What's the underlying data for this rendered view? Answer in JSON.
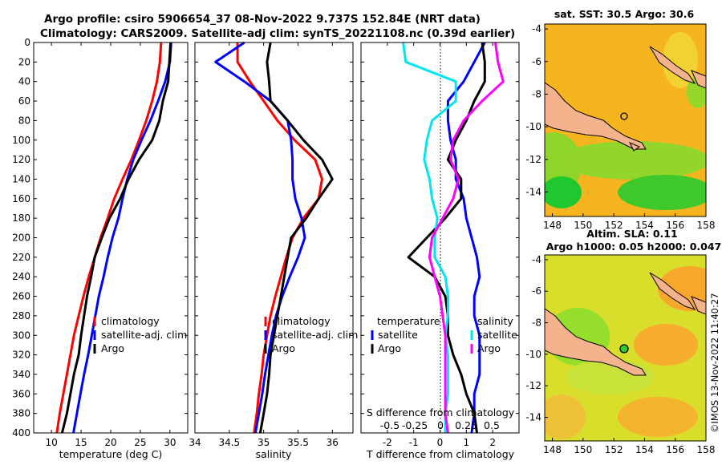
{
  "title": {
    "line1": "Argo profile: csiro 5906654_37 08-Nov-2022 9.737S 152.84E (NRT data)",
    "line2": "Climatology: CARS2009. Satellite-adj clim: synTS_20221108.nc (0.39d earlier)"
  },
  "watermark": "©IMOS 13-Nov-2022 11:40:27",
  "colors": {
    "climatology": "#ff0000",
    "satellite": "#0000ff",
    "argo": "#000000",
    "salinity": "#ff00ff",
    "sat_salinity": "#00e5ee"
  },
  "chart_data": [
    {
      "type": "line",
      "title": "",
      "xlabel": "temperature (deg C)",
      "ylabel": "depth",
      "xlim": [
        7,
        33
      ],
      "ylim": [
        400,
        0
      ],
      "xticks": [
        10,
        15,
        20,
        25,
        30
      ],
      "yticks": [
        0,
        20,
        40,
        60,
        80,
        100,
        120,
        140,
        160,
        180,
        200,
        220,
        240,
        260,
        280,
        300,
        320,
        340,
        360,
        380,
        400
      ],
      "legend": [
        "climatology",
        "satellite-adj. clim",
        "Argo"
      ],
      "series": [
        {
          "name": "climatology",
          "color": "#ff0000",
          "x": [
            28.5,
            28.3,
            27.8,
            27.0,
            26.0,
            24.8,
            23.5,
            22.0,
            20.6,
            19.5,
            18.3,
            17.3,
            16.3,
            15.4,
            14.6,
            13.8,
            13.2,
            12.6,
            12.0,
            11.4,
            10.9
          ],
          "y": [
            0,
            20,
            40,
            60,
            80,
            100,
            120,
            140,
            160,
            180,
            200,
            220,
            240,
            260,
            280,
            300,
            320,
            340,
            360,
            380,
            400
          ]
        },
        {
          "name": "satellite-adj. clim",
          "color": "#0000ff",
          "x": [
            30.2,
            30.0,
            29.2,
            28.0,
            26.7,
            25.2,
            23.8,
            22.8,
            22.0,
            21.3,
            20.3,
            19.5,
            18.8,
            18.0,
            17.4,
            16.8,
            16.2,
            15.5,
            14.9,
            14.3,
            13.7
          ],
          "y": [
            0,
            20,
            40,
            60,
            80,
            100,
            120,
            140,
            160,
            180,
            200,
            220,
            240,
            260,
            280,
            300,
            320,
            340,
            360,
            380,
            400
          ]
        },
        {
          "name": "Argo",
          "color": "#000000",
          "x": [
            30.1,
            29.9,
            29.7,
            28.8,
            28.2,
            27.0,
            24.8,
            23.0,
            21.6,
            19.8,
            18.5,
            17.3,
            16.7,
            16.0,
            15.5,
            15.0,
            14.6,
            13.8,
            13.2,
            12.6,
            11.8
          ],
          "y": [
            0,
            20,
            40,
            60,
            80,
            100,
            120,
            140,
            160,
            180,
            200,
            220,
            240,
            260,
            280,
            300,
            320,
            340,
            360,
            380,
            400
          ]
        }
      ]
    },
    {
      "type": "line",
      "title": "",
      "xlabel": "salinity",
      "ylabel": "depth",
      "xlim": [
        34,
        36.3
      ],
      "ylim": [
        400,
        0
      ],
      "xticks": [
        34,
        34.5,
        35,
        35.5,
        36
      ],
      "legend": [
        "climatology",
        "satellite-adj. clim",
        "Argo"
      ],
      "series": [
        {
          "name": "climatology",
          "color": "#ff0000",
          "x": [
            34.62,
            34.62,
            34.8,
            35.0,
            35.2,
            35.45,
            35.75,
            35.85,
            35.8,
            35.58,
            35.42,
            35.33,
            35.25,
            35.17,
            35.1,
            35.05,
            35.0,
            34.97,
            34.93,
            34.9,
            34.86
          ],
          "y": [
            0,
            20,
            40,
            60,
            80,
            100,
            120,
            140,
            160,
            180,
            200,
            220,
            240,
            260,
            280,
            300,
            320,
            340,
            360,
            380,
            400
          ]
        },
        {
          "name": "satellite-adj. clim",
          "color": "#0000ff",
          "x": [
            34.72,
            34.3,
            34.72,
            35.1,
            35.35,
            35.4,
            35.42,
            35.42,
            35.46,
            35.55,
            35.6,
            35.5,
            35.38,
            35.27,
            35.18,
            35.12,
            35.07,
            35.02,
            34.98,
            34.93,
            34.88
          ],
          "y": [
            0,
            20,
            40,
            60,
            80,
            100,
            120,
            140,
            160,
            180,
            200,
            220,
            240,
            260,
            280,
            300,
            320,
            340,
            360,
            380,
            400
          ]
        },
        {
          "name": "Argo",
          "color": "#000000",
          "x": [
            35.1,
            35.05,
            35.08,
            35.1,
            35.35,
            35.58,
            35.85,
            36.0,
            35.8,
            35.62,
            35.4,
            35.35,
            35.3,
            35.25,
            35.2,
            35.15,
            35.1,
            35.08,
            35.05,
            35.0,
            34.95
          ],
          "y": [
            0,
            20,
            40,
            60,
            80,
            100,
            120,
            140,
            160,
            180,
            200,
            220,
            240,
            260,
            280,
            300,
            320,
            340,
            360,
            380,
            400
          ]
        }
      ]
    },
    {
      "type": "line",
      "title": "",
      "xlabel": "T difference from climatology",
      "ylabel": "depth",
      "xlim": [
        -3,
        3
      ],
      "ylim": [
        400,
        0
      ],
      "xticks": [
        -2,
        -1,
        0,
        1,
        2
      ],
      "top_axis_label": "S difference from climatology",
      "top_xticks": [
        "-0.5",
        "-0.25",
        "0",
        "0.25",
        "0.5"
      ],
      "legend_left_title": "temperature",
      "legend_right_title": "salinity",
      "legend": [
        "satellite",
        "Argo",
        "satellite",
        "Argo"
      ],
      "series": [
        {
          "name": "satellite",
          "group": "temperature",
          "color": "#0000ff",
          "x": [
            1.7,
            1.3,
            0.9,
            0.3,
            0.3,
            0.4,
            0.6,
            0.6,
            0.9,
            1.0,
            1.2,
            1.4,
            1.5,
            1.3,
            1.3,
            1.5,
            1.5,
            1.5,
            1.3,
            1.3,
            1.2
          ],
          "y": [
            0,
            20,
            40,
            60,
            80,
            100,
            120,
            140,
            160,
            180,
            200,
            220,
            240,
            260,
            280,
            300,
            320,
            340,
            360,
            380,
            400
          ]
        },
        {
          "name": "Argo",
          "group": "temperature",
          "color": "#000000",
          "x": [
            1.6,
            1.7,
            1.7,
            1.3,
            1.0,
            0.6,
            0.3,
            0.8,
            0.8,
            0.2,
            -0.5,
            -1.2,
            -0.2,
            0.2,
            0.3,
            0.3,
            0.5,
            0.8,
            1.0,
            1.3,
            1.4
          ],
          "y": [
            0,
            20,
            40,
            60,
            80,
            100,
            120,
            140,
            160,
            180,
            200,
            220,
            240,
            260,
            280,
            300,
            320,
            340,
            360,
            380,
            400
          ]
        },
        {
          "name": "satellite",
          "group": "salinity",
          "color": "#00e5ee",
          "x": [
            -1.4,
            -1.3,
            0.6,
            0.6,
            -0.3,
            -0.5,
            -0.6,
            -0.4,
            -0.3,
            -0.1,
            -0.2,
            -0.2,
            0.2,
            0.3,
            0.3,
            0.2,
            0.3,
            0.3,
            0.3,
            0.2,
            0.2
          ],
          "y": [
            0,
            20,
            40,
            60,
            80,
            100,
            120,
            140,
            160,
            180,
            200,
            220,
            240,
            260,
            280,
            300,
            320,
            340,
            360,
            380,
            400
          ]
        },
        {
          "name": "Argo",
          "group": "salinity",
          "color": "#ff00ff",
          "x": [
            2.1,
            2.2,
            2.4,
            1.6,
            0.9,
            0.5,
            0.4,
            0.7,
            0.5,
            0.1,
            -0.3,
            -0.4,
            -0.2,
            0.0,
            0.1,
            0.2,
            0.2,
            0.2,
            0.2,
            0.2,
            0.3
          ],
          "y": [
            0,
            20,
            40,
            60,
            80,
            100,
            120,
            140,
            160,
            180,
            200,
            220,
            240,
            260,
            280,
            300,
            320,
            340,
            360,
            380,
            400
          ]
        }
      ]
    },
    {
      "type": "heatmap",
      "title": "sat. SST: 30.5 Argo: 30.6",
      "xlim": [
        147.5,
        158
      ],
      "ylim": [
        -15.5,
        -3.7
      ],
      "xticks": [
        148,
        150,
        152,
        154,
        156,
        158
      ],
      "yticks": [
        -4,
        -6,
        -8,
        -10,
        -12,
        -14
      ],
      "marker": {
        "lon": 152.84,
        "lat": -9.737
      }
    },
    {
      "type": "heatmap",
      "title": "Altim. SLA: 0.11",
      "subtitle": "Argo h1000: 0.05 h2000: 0.047",
      "xlim": [
        147.5,
        158
      ],
      "ylim": [
        -15.5,
        -3.7
      ],
      "xticks": [
        148,
        150,
        152,
        154,
        156,
        158
      ],
      "yticks": [
        -4,
        -6,
        -8,
        -10,
        -12,
        -14
      ],
      "marker": {
        "lon": 152.84,
        "lat": -9.737
      }
    }
  ]
}
